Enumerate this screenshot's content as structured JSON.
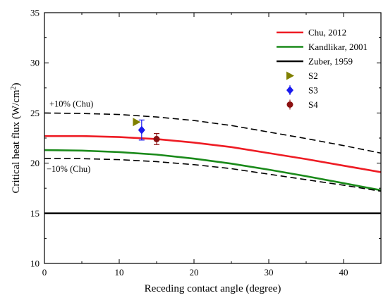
{
  "chart_data": {
    "type": "line",
    "title": "",
    "xlabel": "Receding contact angle (degree)",
    "ylabel_main": "Critical heat flux (W/cm",
    "ylabel_sup": "2",
    "ylabel_tail": ")",
    "xlim": [
      0,
      45
    ],
    "ylim": [
      10,
      35
    ],
    "xticks": [
      0,
      10,
      20,
      30,
      40
    ],
    "yticks": [
      10,
      15,
      20,
      25,
      30,
      35
    ],
    "grid": false,
    "legend_position": "top-right",
    "series": [
      {
        "name": "Chu, 2012",
        "style": "line",
        "color": "#ee1c24",
        "dash": "solid",
        "x": [
          0,
          5,
          10,
          15,
          20,
          25,
          30,
          35,
          40,
          45
        ],
        "y": [
          22.7,
          22.7,
          22.6,
          22.4,
          22.05,
          21.6,
          21.0,
          20.4,
          19.75,
          19.1
        ]
      },
      {
        "name": "Kandlikar, 2001",
        "style": "line",
        "color": "#1a8a1a",
        "dash": "solid",
        "x": [
          0,
          5,
          10,
          15,
          20,
          25,
          30,
          35,
          40,
          45
        ],
        "y": [
          21.3,
          21.25,
          21.1,
          20.85,
          20.45,
          19.95,
          19.35,
          18.7,
          18.0,
          17.3
        ]
      },
      {
        "name": "Zuber, 1959",
        "style": "line",
        "color": "#000000",
        "dash": "solid",
        "x": [
          0,
          45
        ],
        "y": [
          15.0,
          15.0
        ]
      },
      {
        "name": "S2",
        "style": "marker",
        "marker": "triangle-right",
        "color": "#808000",
        "x": [
          12.3
        ],
        "y": [
          24.1
        ]
      },
      {
        "name": "S3",
        "style": "marker",
        "marker": "diamond",
        "color": "#1a1aee",
        "x": [
          13.0
        ],
        "y": [
          23.3
        ],
        "err": [
          1.0
        ]
      },
      {
        "name": "S4",
        "style": "marker",
        "marker": "circle",
        "color": "#8b1010",
        "x": [
          15.0
        ],
        "y": [
          22.4
        ],
        "err": [
          0.55
        ]
      }
    ],
    "bounds": [
      {
        "label": "+10% (Chu)",
        "color": "#000000",
        "dash": "dashed",
        "x": [
          0,
          5,
          10,
          15,
          20,
          25,
          30,
          35,
          40,
          45
        ],
        "y": [
          25.0,
          24.95,
          24.85,
          24.6,
          24.25,
          23.75,
          23.1,
          22.45,
          21.75,
          21.0
        ]
      },
      {
        "label": "−10% (Chu)",
        "color": "#000000",
        "dash": "dashed",
        "x": [
          0,
          5,
          10,
          15,
          20,
          25,
          30,
          35,
          40,
          45
        ],
        "y": [
          20.45,
          20.45,
          20.35,
          20.15,
          19.85,
          19.45,
          18.9,
          18.35,
          17.8,
          17.2
        ]
      }
    ]
  }
}
